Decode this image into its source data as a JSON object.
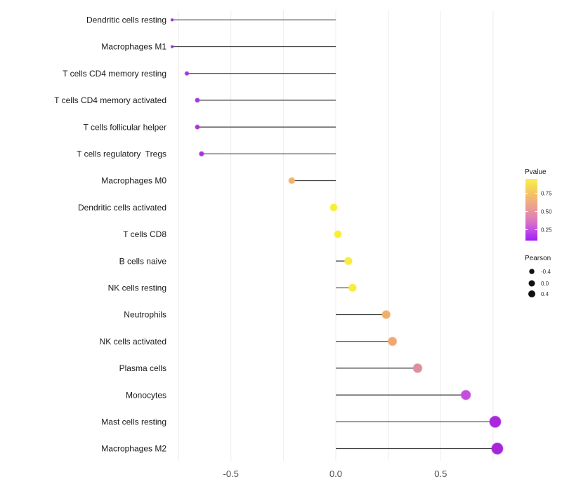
{
  "chart_data": {
    "type": "scatter",
    "subtype": "lollipop",
    "title": "",
    "xlabel": "",
    "ylabel": "",
    "xlim": [
      -0.79,
      0.82
    ],
    "x_ticks": [
      -0.5,
      0.0,
      0.5
    ],
    "x_tick_labels": [
      "-0.5",
      "0.0",
      "0.5"
    ],
    "gridlines": [
      -0.75,
      -0.5,
      -0.25,
      0.0,
      0.25,
      0.5,
      0.75
    ],
    "grid": true,
    "legend_position": "right",
    "points": [
      {
        "label": "Dendritic cells resting",
        "pearson": -0.78,
        "pvalue_est": 0.13,
        "color": "#A32CE0",
        "r": 1.8
      },
      {
        "label": "Macrophages M1",
        "pearson": -0.78,
        "pvalue_est": 0.13,
        "color": "#A32CE0",
        "r": 1.8
      },
      {
        "label": "T cells CD4 memory resting",
        "pearson": -0.71,
        "pvalue_est": 0.16,
        "color": "#A438DA",
        "r": 2.7
      },
      {
        "label": "T cells CD4 memory activated",
        "pearson": -0.66,
        "pvalue_est": 0.15,
        "color": "#A636DC",
        "r": 3.0
      },
      {
        "label": "T cells follicular helper",
        "pearson": -0.66,
        "pvalue_est": 0.15,
        "color": "#A636DC",
        "r": 3.0
      },
      {
        "label": "T cells regulatory  Tregs",
        "pearson": -0.64,
        "pvalue_est": 0.14,
        "color": "#AA32DE",
        "r": 3.2
      },
      {
        "label": "Macrophages M0",
        "pearson": -0.21,
        "pvalue_est": 0.78,
        "color": "#F3B269",
        "r": 4.3
      },
      {
        "label": "Dendritic cells activated",
        "pearson": -0.01,
        "pvalue_est": 0.93,
        "color": "#F9EE34",
        "r": 5.0
      },
      {
        "label": "T cells CD8",
        "pearson": 0.01,
        "pvalue_est": 0.93,
        "color": "#F9EE34",
        "r": 5.0
      },
      {
        "label": "B cells naive",
        "pearson": 0.06,
        "pvalue_est": 0.9,
        "color": "#F8EC3D",
        "r": 5.3
      },
      {
        "label": "NK cells resting",
        "pearson": 0.08,
        "pvalue_est": 0.9,
        "color": "#F8EC3D",
        "r": 5.3
      },
      {
        "label": "Neutrophils",
        "pearson": 0.24,
        "pvalue_est": 0.77,
        "color": "#F2AE6B",
        "r": 5.7
      },
      {
        "label": "NK cells activated",
        "pearson": 0.27,
        "pvalue_est": 0.74,
        "color": "#F0A873",
        "r": 6.0
      },
      {
        "label": "Plasma cells",
        "pearson": 0.39,
        "pvalue_est": 0.53,
        "color": "#DC8F9C",
        "r": 6.3
      },
      {
        "label": "Monocytes",
        "pearson": 0.62,
        "pvalue_est": 0.28,
        "color": "#C44EDC",
        "r": 6.7
      },
      {
        "label": "Mast cells resting",
        "pearson": 0.76,
        "pvalue_est": 0.12,
        "color": "#A928DB",
        "r": 8.0
      },
      {
        "label": "Macrophages M2",
        "pearson": 0.77,
        "pvalue_est": 0.12,
        "color": "#A526DB",
        "r": 8.0
      }
    ],
    "legends": {
      "pvalue": {
        "title": "Pvalue",
        "tick_values": [
          0.75,
          0.5,
          0.25
        ],
        "tick_labels": [
          "0.75",
          "0.50",
          "0.25"
        ],
        "domain": [
          0.1,
          0.95
        ],
        "gradient_stops": [
          {
            "offset": "0%",
            "color": "#F8F149"
          },
          {
            "offset": "25%",
            "color": "#F5C166"
          },
          {
            "offset": "50%",
            "color": "#E9989A"
          },
          {
            "offset": "70%",
            "color": "#D873C4"
          },
          {
            "offset": "83%",
            "color": "#C24FE6"
          },
          {
            "offset": "100%",
            "color": "#A21DF5"
          }
        ]
      },
      "pearson": {
        "title": "Pearson",
        "items": [
          {
            "label": "-0.4",
            "r": 3.7
          },
          {
            "label": "0.0",
            "r": 4.5
          },
          {
            "label": "0.4",
            "r": 5.0
          }
        ]
      }
    },
    "colors": {
      "stem": "#3F3F3F",
      "gridline": "#ECECEC",
      "axis_text": "#4D4D4D",
      "category_text": "#1A1A1A",
      "legend_text": "#333333",
      "legend_dot": "#111111",
      "background": "#FFFFFF"
    }
  }
}
